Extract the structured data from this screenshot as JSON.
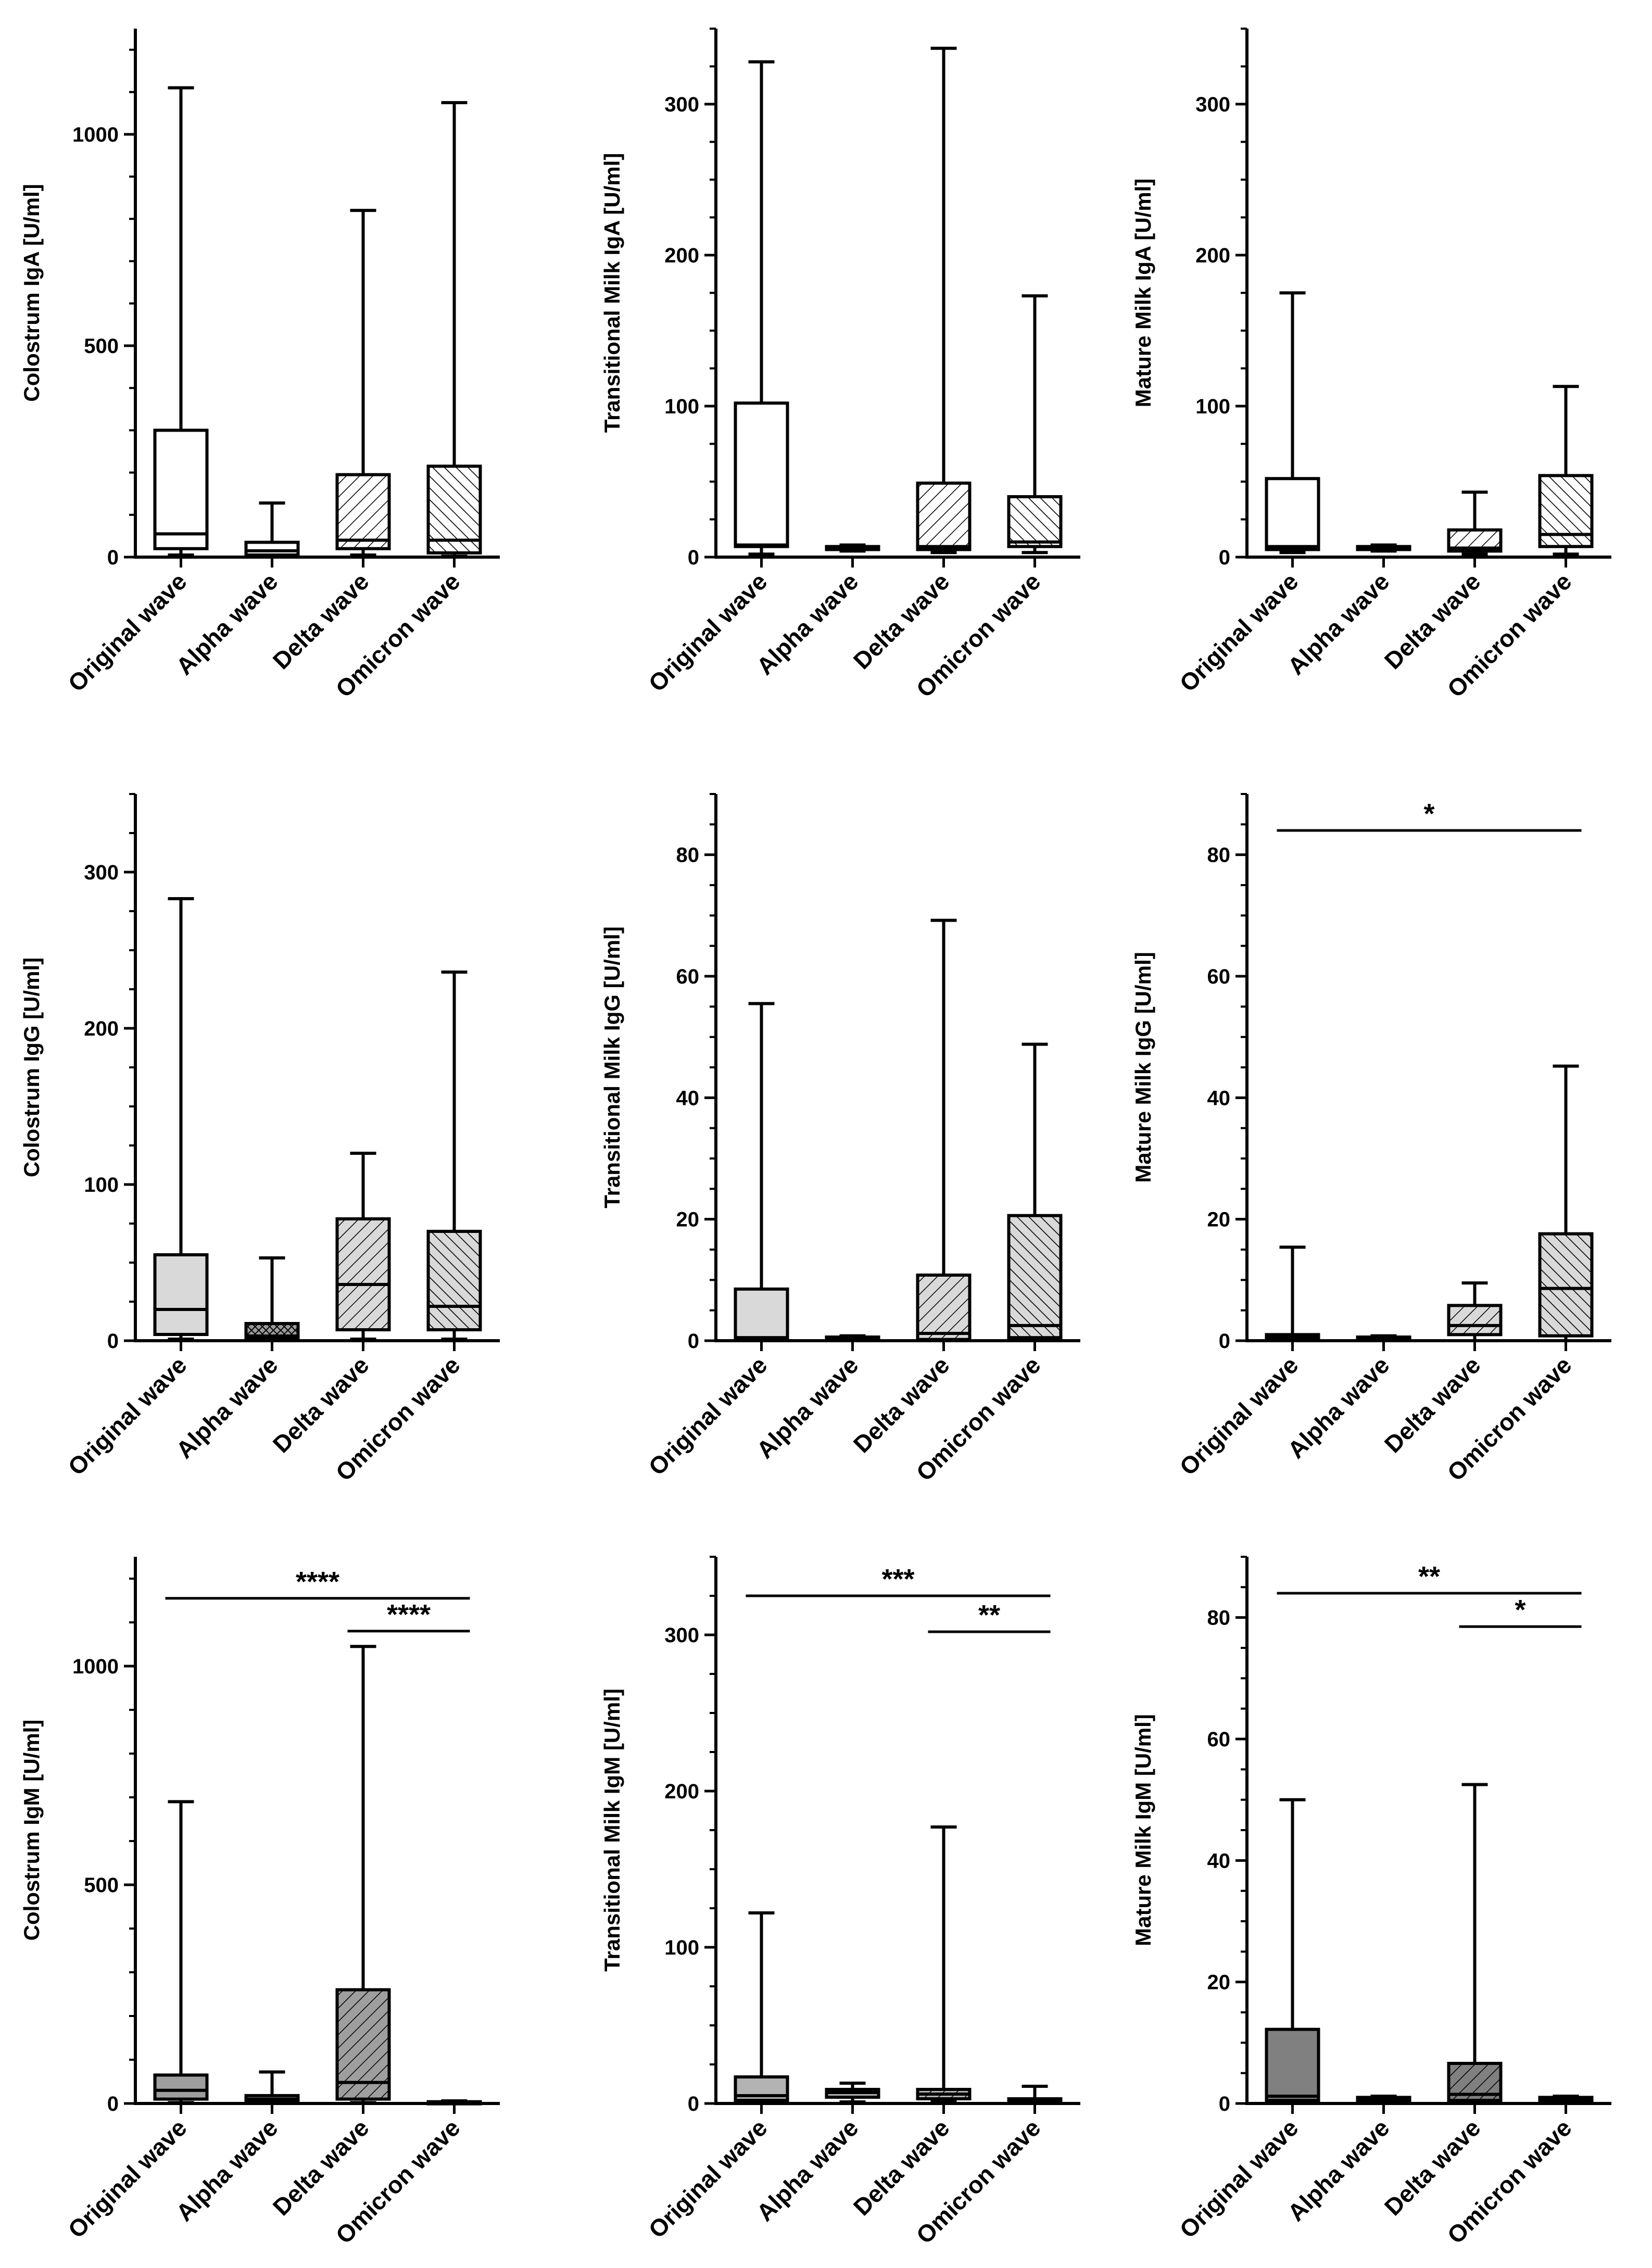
{
  "figure": {
    "rows": 3,
    "cols": 3
  },
  "chart_data": [
    {
      "type": "box",
      "ylabel": "Colostrum IgA [U/ml]",
      "ylim": [
        0,
        1250
      ],
      "yticks": [
        0,
        500,
        1000
      ],
      "minor_step": 100,
      "categories": [
        "Original wave",
        "Alpha wave",
        "Delta wave",
        "Omicron wave"
      ],
      "boxes": [
        {
          "min": 5,
          "q1": 20,
          "median": 55,
          "q3": 300,
          "max": 1110,
          "pattern": "none",
          "fill": "#ffffff"
        },
        {
          "min": 0,
          "q1": 5,
          "median": 15,
          "q3": 35,
          "max": 128,
          "pattern": "none",
          "fill": "#ffffff"
        },
        {
          "min": 5,
          "q1": 20,
          "median": 40,
          "q3": 195,
          "max": 820,
          "pattern": "hatch-right",
          "fill": "#ffffff"
        },
        {
          "min": 2,
          "q1": 10,
          "median": 40,
          "q3": 215,
          "max": 1075,
          "pattern": "hatch-left",
          "fill": "#ffffff"
        }
      ],
      "significance": []
    },
    {
      "type": "box",
      "ylabel": "Transitional Milk  IgA [U/ml]",
      "ylim": [
        0,
        350
      ],
      "yticks": [
        0,
        100,
        200,
        300
      ],
      "minor_step": 25,
      "categories": [
        "Original wave",
        "Alpha wave",
        "Delta wave",
        "Omicron wave"
      ],
      "boxes": [
        {
          "min": 2,
          "q1": 7,
          "median": 8,
          "q3": 102,
          "max": 328,
          "pattern": "none",
          "fill": "#ffffff"
        },
        {
          "min": 4,
          "q1": 5,
          "median": 6,
          "q3": 7,
          "max": 8,
          "pattern": "none",
          "fill": "#ffffff"
        },
        {
          "min": 3,
          "q1": 5,
          "median": 7,
          "q3": 49,
          "max": 337,
          "pattern": "hatch-right",
          "fill": "#ffffff"
        },
        {
          "min": 3,
          "q1": 7,
          "median": 10,
          "q3": 40,
          "max": 173,
          "pattern": "hatch-left",
          "fill": "#ffffff"
        }
      ],
      "significance": []
    },
    {
      "type": "box",
      "ylabel": "Mature Milk IgA [U/ml]",
      "ylim": [
        0,
        350
      ],
      "yticks": [
        0,
        100,
        200,
        300
      ],
      "minor_step": 25,
      "categories": [
        "Original wave",
        "Alpha wave",
        "Delta wave",
        "Omicron wave"
      ],
      "boxes": [
        {
          "min": 3,
          "q1": 5,
          "median": 7,
          "q3": 52,
          "max": 175,
          "pattern": "none",
          "fill": "#ffffff"
        },
        {
          "min": 4,
          "q1": 5,
          "median": 6,
          "q3": 7,
          "max": 8,
          "pattern": "none",
          "fill": "#ffffff"
        },
        {
          "min": 2,
          "q1": 4,
          "median": 6,
          "q3": 18,
          "max": 43,
          "pattern": "hatch-right",
          "fill": "#ffffff"
        },
        {
          "min": 2,
          "q1": 7,
          "median": 15,
          "q3": 54,
          "max": 113,
          "pattern": "hatch-left",
          "fill": "#ffffff"
        }
      ],
      "significance": []
    },
    {
      "type": "box",
      "ylabel": "Colostrum IgG [U/ml]",
      "ylim": [
        0,
        350
      ],
      "yticks": [
        0,
        100,
        200,
        300
      ],
      "minor_step": 25,
      "categories": [
        "Original wave",
        "Alpha wave",
        "Delta wave",
        "Omicron wave"
      ],
      "boxes": [
        {
          "min": 1,
          "q1": 4,
          "median": 20,
          "q3": 55,
          "max": 283,
          "pattern": "none",
          "fill": "#d9d9d9"
        },
        {
          "min": 0,
          "q1": 1,
          "median": 3,
          "q3": 11,
          "max": 53,
          "pattern": "cross",
          "fill": "#9a9a9a"
        },
        {
          "min": 1,
          "q1": 7,
          "median": 36,
          "q3": 78,
          "max": 120,
          "pattern": "hatch-right",
          "fill": "#d9d9d9"
        },
        {
          "min": 1,
          "q1": 7,
          "median": 22,
          "q3": 70,
          "max": 236,
          "pattern": "hatch-left",
          "fill": "#d9d9d9"
        }
      ],
      "significance": []
    },
    {
      "type": "box",
      "ylabel": "Transitional Milk IgG [U/ml]",
      "ylim": [
        0,
        90
      ],
      "yticks": [
        0,
        20,
        40,
        60,
        80
      ],
      "minor_step": 5,
      "categories": [
        "Original wave",
        "Alpha wave",
        "Delta wave",
        "Omicron wave"
      ],
      "boxes": [
        {
          "min": 0,
          "q1": 0.2,
          "median": 0.5,
          "q3": 8.5,
          "max": 55.5,
          "pattern": "none",
          "fill": "#d9d9d9"
        },
        {
          "min": 0,
          "q1": 0.1,
          "median": 0.3,
          "q3": 0.6,
          "max": 0.8,
          "pattern": "none",
          "fill": "#d9d9d9"
        },
        {
          "min": 0,
          "q1": 0.2,
          "median": 1.2,
          "q3": 10.8,
          "max": 69.2,
          "pattern": "hatch-right",
          "fill": "#d9d9d9"
        },
        {
          "min": 0,
          "q1": 0.5,
          "median": 2.5,
          "q3": 20.6,
          "max": 48.8,
          "pattern": "hatch-left",
          "fill": "#d9d9d9"
        }
      ],
      "significance": []
    },
    {
      "type": "box",
      "ylabel": "Mature Milk IgG [U/ml]",
      "ylim": [
        0,
        90
      ],
      "yticks": [
        0,
        20,
        40,
        60,
        80
      ],
      "minor_step": 5,
      "categories": [
        "Original wave",
        "Alpha wave",
        "Delta wave",
        "Omicron wave"
      ],
      "boxes": [
        {
          "min": 0,
          "q1": 0.2,
          "median": 0.6,
          "q3": 1.0,
          "max": 15.4,
          "pattern": "none",
          "fill": "#d9d9d9"
        },
        {
          "min": 0,
          "q1": 0.1,
          "median": 0.3,
          "q3": 0.6,
          "max": 0.8,
          "pattern": "none",
          "fill": "#d9d9d9"
        },
        {
          "min": 0,
          "q1": 1.0,
          "median": 2.5,
          "q3": 5.8,
          "max": 9.5,
          "pattern": "hatch-right",
          "fill": "#d9d9d9"
        },
        {
          "min": 0,
          "q1": 0.8,
          "median": 8.6,
          "q3": 17.6,
          "max": 45.2,
          "pattern": "hatch-left",
          "fill": "#d9d9d9"
        }
      ],
      "significance": [
        {
          "from": 0,
          "to": 3,
          "y": 84,
          "label": "*"
        }
      ]
    },
    {
      "type": "box",
      "ylabel": "Colostrum IgM [U/ml]",
      "ylim": [
        0,
        1250
      ],
      "yticks": [
        0,
        500,
        1000
      ],
      "minor_step": 100,
      "categories": [
        "Original wave",
        "Alpha wave",
        "Delta wave",
        "Omicron wave"
      ],
      "boxes": [
        {
          "min": 2,
          "q1": 10,
          "median": 30,
          "q3": 65,
          "max": 690,
          "pattern": "none",
          "fill": "#9e9e9e"
        },
        {
          "min": 1,
          "q1": 5,
          "median": 10,
          "q3": 18,
          "max": 72,
          "pattern": "none",
          "fill": "#9e9e9e"
        },
        {
          "min": 2,
          "q1": 10,
          "median": 48,
          "q3": 260,
          "max": 1045,
          "pattern": "hatch-right",
          "fill": "#9e9e9e"
        },
        {
          "min": 0,
          "q1": 1,
          "median": 2,
          "q3": 4,
          "max": 6,
          "pattern": "none",
          "fill": "#9e9e9e"
        }
      ],
      "significance": [
        {
          "from": 0,
          "to": 3,
          "y": 1155,
          "label": "****"
        },
        {
          "from": 2,
          "to": 3,
          "y": 1080,
          "label": "****"
        }
      ]
    },
    {
      "type": "box",
      "ylabel": "Transitional Milk IgM [U/ml]",
      "ylim": [
        0,
        350
      ],
      "yticks": [
        0,
        100,
        200,
        300
      ],
      "minor_step": 25,
      "categories": [
        "Original wave",
        "Alpha wave",
        "Delta wave",
        "Omicron wave"
      ],
      "boxes": [
        {
          "min": 1,
          "q1": 2,
          "median": 5,
          "q3": 17,
          "max": 122,
          "pattern": "none",
          "fill": "#b3b3b3"
        },
        {
          "min": 1,
          "q1": 4,
          "median": 7,
          "q3": 9,
          "max": 13,
          "pattern": "none",
          "fill": "#b3b3b3"
        },
        {
          "min": 1,
          "q1": 3,
          "median": 6,
          "q3": 9,
          "max": 177,
          "pattern": "hatch-right",
          "fill": "#b3b3b3"
        },
        {
          "min": 0,
          "q1": 1,
          "median": 2,
          "q3": 3,
          "max": 11,
          "pattern": "none",
          "fill": "#b3b3b3"
        }
      ],
      "significance": [
        {
          "from": 0,
          "to": 3,
          "y": 325,
          "label": "***"
        },
        {
          "from": 2,
          "to": 3,
          "y": 302,
          "label": "**"
        }
      ]
    },
    {
      "type": "box",
      "ylabel": "Mature Milk IgM [U/ml]",
      "ylim": [
        0,
        90
      ],
      "yticks": [
        0,
        20,
        40,
        60,
        80
      ],
      "minor_step": 5,
      "categories": [
        "Original wave",
        "Alpha wave",
        "Delta wave",
        "Omicron wave"
      ],
      "boxes": [
        {
          "min": 0,
          "q1": 0.5,
          "median": 1.2,
          "q3": 12.2,
          "max": 50,
          "pattern": "none",
          "fill": "#808080"
        },
        {
          "min": 0,
          "q1": 0.3,
          "median": 0.6,
          "q3": 1.0,
          "max": 1.2,
          "pattern": "none",
          "fill": "#808080"
        },
        {
          "min": 0,
          "q1": 0.5,
          "median": 1.5,
          "q3": 6.6,
          "max": 52.5,
          "pattern": "hatch-right",
          "fill": "#808080"
        },
        {
          "min": 0,
          "q1": 0.3,
          "median": 0.6,
          "q3": 1.0,
          "max": 1.2,
          "pattern": "none",
          "fill": "#808080"
        }
      ],
      "significance": [
        {
          "from": 0,
          "to": 3,
          "y": 84,
          "label": "**"
        },
        {
          "from": 2,
          "to": 3,
          "y": 78.5,
          "label": "*"
        }
      ]
    }
  ]
}
